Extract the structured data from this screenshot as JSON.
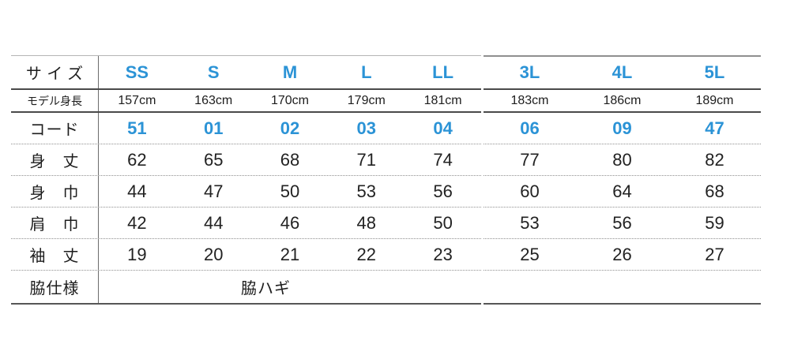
{
  "accent": {
    "blue": "#2b93d6"
  },
  "size_chart": {
    "size_row_label": "サイズ",
    "sizes": [
      "SS",
      "S",
      "M",
      "L",
      "LL",
      "3L",
      "4L",
      "5L"
    ],
    "model_height_label": "モデル身長",
    "model_heights": [
      "157cm",
      "163cm",
      "170cm",
      "179cm",
      "181cm",
      "183cm",
      "186cm",
      "189cm"
    ],
    "code_row": {
      "label": "コード",
      "values": [
        "51",
        "01",
        "02",
        "03",
        "04",
        "06",
        "09",
        "47"
      ]
    },
    "measurement_rows": [
      {
        "label": "身　丈",
        "values": [
          "62",
          "65",
          "68",
          "71",
          "74",
          "77",
          "80",
          "82"
        ]
      },
      {
        "label": "身　巾",
        "values": [
          "44",
          "47",
          "50",
          "53",
          "56",
          "60",
          "64",
          "68"
        ]
      },
      {
        "label": "肩　巾",
        "values": [
          "42",
          "44",
          "46",
          "48",
          "50",
          "53",
          "56",
          "59"
        ]
      },
      {
        "label": "袖　丈",
        "values": [
          "19",
          "20",
          "21",
          "22",
          "23",
          "25",
          "26",
          "27"
        ]
      }
    ],
    "side_spec": {
      "label": "脇仕様",
      "value": "脇ハギ"
    }
  }
}
